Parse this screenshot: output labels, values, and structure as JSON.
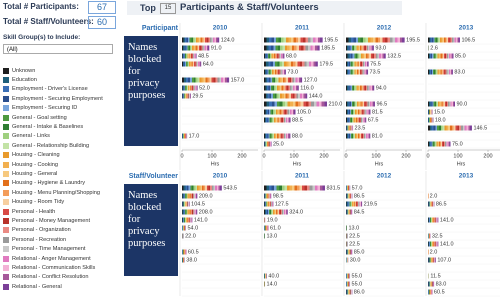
{
  "header": {
    "total_participants_label": "Total # Participants:",
    "total_participants": 67,
    "total_staff_label": "Total # Staff/Volunteers:",
    "total_staff": 60,
    "top_label": "Top",
    "top_n": 15,
    "title": "Participants & Staff/Volunteers"
  },
  "filter": {
    "label": "Skill Group(s) to Include:",
    "selected": "(All)"
  },
  "privacy_note": "Names blocked for privacy purposes",
  "legend": [
    {
      "name": "Unknown",
      "color": "#1f1f1f"
    },
    {
      "name": "Education",
      "color": "#1f5f7a"
    },
    {
      "name": "Employment - Driver's License",
      "color": "#3b6fb6"
    },
    {
      "name": "Employment - Securing Employment",
      "color": "#2b4f8e"
    },
    {
      "name": "Employment - Securing ID",
      "color": "#7aa6dc"
    },
    {
      "name": "General - Goal setting",
      "color": "#4e9a3f"
    },
    {
      "name": "General - Intake & Baselines",
      "color": "#2f7d32"
    },
    {
      "name": "General - Links",
      "color": "#9fd07f"
    },
    {
      "name": "General - Relationship Building",
      "color": "#c3e3a6"
    },
    {
      "name": "Housing - Cleaning",
      "color": "#e89a2c"
    },
    {
      "name": "Housing - Cooking",
      "color": "#f2b04f"
    },
    {
      "name": "Housing - General",
      "color": "#f6c97f"
    },
    {
      "name": "Housing - Hygiene & Laundry",
      "color": "#e2701c"
    },
    {
      "name": "Housing - Menu Planning/Shopping",
      "color": "#f39c5a"
    },
    {
      "name": "Housing - Room Tidy",
      "color": "#f7cfa0"
    },
    {
      "name": "Personal - Health",
      "color": "#d84a45"
    },
    {
      "name": "Personal - Money Management",
      "color": "#b8322a"
    },
    {
      "name": "Personal - Organization",
      "color": "#ea8a84"
    },
    {
      "name": "Personal - Recreation",
      "color": "#9a9a9a"
    },
    {
      "name": "Personal - Time Management",
      "color": "#c9c9c9"
    },
    {
      "name": "Relational - Anger Management",
      "color": "#e07ac0"
    },
    {
      "name": "Relational - Communication Skills",
      "color": "#f3b2d6"
    },
    {
      "name": "Relational - Conflict Resolution",
      "color": "#a6589a"
    },
    {
      "name": "Relational - General",
      "color": "#7b3f98"
    }
  ],
  "chart_data": [
    {
      "type": "bar",
      "title": "Participant",
      "xlabel": "Hrs",
      "xlim": [
        0,
        220
      ],
      "xticks": [
        0,
        100,
        200
      ],
      "series": [
        {
          "name": "2010",
          "values": [
            124,
            91,
            48.5,
            64,
            null,
            157,
            52,
            29.5,
            null,
            null,
            null,
            null,
            17,
            null
          ],
          "value_labels": [
            "124.0",
            "91.0",
            "48.5",
            "64.0",
            null,
            "157.0",
            "52.0",
            "29.5",
            null,
            null,
            null,
            null,
            "17.0",
            null
          ]
        },
        {
          "name": "2011",
          "values": [
            195.5,
            185.5,
            68,
            179.5,
            73,
            127,
            116,
            144,
            210,
            105,
            88.5,
            null,
            88,
            25
          ],
          "value_labels": [
            "195.5",
            "185.5",
            "68.0",
            "179.5",
            "73.0",
            "127.0",
            "116.0",
            "144.0",
            "210.0",
            "105.0",
            "88.5",
            null,
            "88.0",
            "25.0"
          ]
        },
        {
          "name": "2012",
          "values": [
            195.5,
            93,
            132.5,
            75.5,
            73.5,
            null,
            94,
            null,
            96.5,
            81.5,
            67.5,
            23.5,
            81,
            null
          ],
          "value_labels": [
            "195.5",
            "93.0",
            "132.5",
            "75.5",
            "73.5",
            null,
            "94.0",
            null,
            "96.5",
            "81.5",
            "67.5",
            "23.5",
            "81.0",
            null
          ]
        },
        {
          "name": "2013",
          "values": [
            106.5,
            2.6,
            85,
            null,
            83,
            null,
            null,
            null,
            90,
            15,
            18,
            146.5,
            null,
            75
          ],
          "value_labels": [
            "106.5",
            "2.6",
            "85.0",
            null,
            "83.0",
            null,
            null,
            null,
            "90.0",
            "15.0",
            "18.0",
            "146.5",
            null,
            "75.0"
          ]
        }
      ]
    },
    {
      "type": "bar",
      "title": "Staff/Volunteer",
      "xlim": [
        0,
        900
      ],
      "series": [
        {
          "name": "2010",
          "values": [
            543.5,
            209,
            104.5,
            208,
            141,
            54,
            22,
            null,
            60.5,
            38,
            null,
            null,
            null,
            null
          ],
          "value_labels": [
            "543.5",
            "209.0",
            "104.5",
            "208.0",
            "141.0",
            "54.0",
            "22.0",
            null,
            "60.5",
            "38.0",
            null,
            null,
            null,
            null
          ]
        },
        {
          "name": "2011",
          "values": [
            831.5,
            98.5,
            127.5,
            324,
            19,
            61,
            13,
            null,
            null,
            null,
            null,
            40,
            14,
            null
          ],
          "value_labels": [
            "831.5",
            "98.5",
            "127.5",
            "324.0",
            "19.0",
            "61.0",
            "13.0",
            null,
            null,
            null,
            null,
            "40.0",
            "14.0",
            null
          ]
        },
        {
          "name": "2012",
          "values": [
            57,
            86.5,
            219.5,
            84.5,
            null,
            13,
            22.5,
            22.5,
            85,
            30,
            null,
            55,
            55,
            86
          ],
          "value_labels": [
            "57.0",
            "86.5",
            "219.5",
            "84.5",
            null,
            "13.0",
            "22.5",
            "22.5",
            "85.0",
            "30.0",
            null,
            "55.0",
            "55.0",
            "86.0"
          ]
        },
        {
          "name": "2013",
          "values": [
            null,
            2,
            86.5,
            null,
            141,
            null,
            32.5,
            141,
            2,
            107,
            null,
            11.5,
            83,
            60.5
          ],
          "value_labels": [
            null,
            "2.0",
            "86.5",
            null,
            "141.0",
            null,
            "32.5",
            "141.0",
            "2.0",
            "107.0",
            null,
            "11.5",
            "83.0",
            "60.5"
          ]
        }
      ]
    }
  ]
}
